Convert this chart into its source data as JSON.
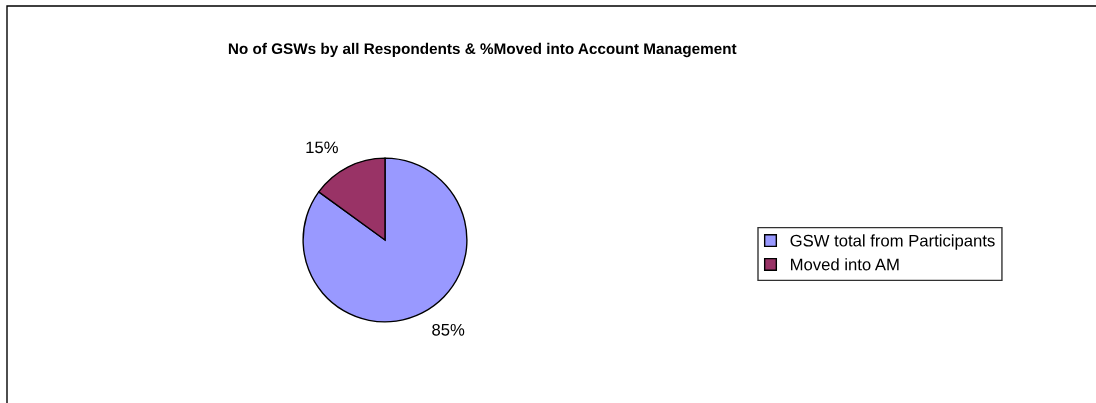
{
  "chart_data": {
    "type": "pie",
    "title": "No of GSWs by all Respondents & %Moved into Account Management",
    "categories": [
      "GSW total from Participants",
      "Moved into AM"
    ],
    "values": [
      85,
      15
    ],
    "colors": [
      "#9999ff",
      "#993366"
    ],
    "value_labels": [
      "85%",
      "15%"
    ],
    "legend": "right"
  }
}
